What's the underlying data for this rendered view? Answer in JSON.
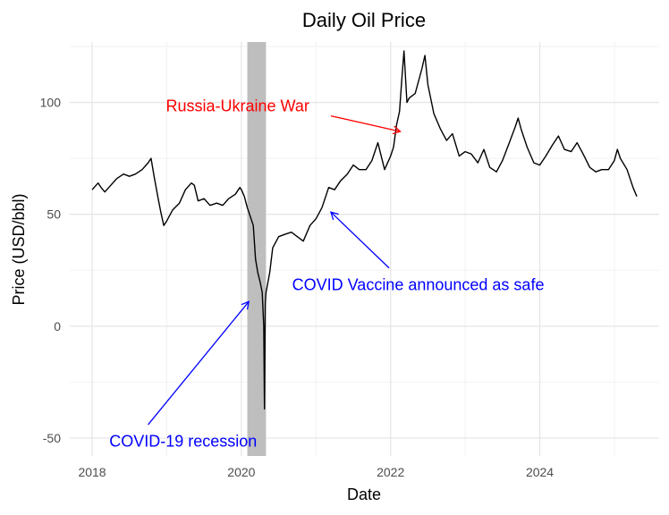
{
  "chart_data": {
    "type": "line",
    "title": "Daily Oil Price",
    "xlabel": "Date",
    "ylabel": "Price (USD/bbl)",
    "x_ticks": [
      {
        "value": 2018,
        "label": "2018"
      },
      {
        "value": 2020,
        "label": "2020"
      },
      {
        "value": 2022,
        "label": "2022"
      },
      {
        "value": 2024,
        "label": "2024"
      }
    ],
    "y_ticks": [
      {
        "value": -50,
        "label": "-50"
      },
      {
        "value": 0,
        "label": "0"
      },
      {
        "value": 50,
        "label": "50"
      },
      {
        "value": 100,
        "label": "100"
      }
    ],
    "xlim": [
      2017.7,
      2025.6
    ],
    "ylim": [
      -58,
      127
    ],
    "grid": true,
    "shaded_region": {
      "x_start": 2020.08,
      "x_end": 2020.33,
      "color": "#bebebe"
    },
    "series": [
      {
        "color": "#000000",
        "points": [
          [
            2018.0,
            61
          ],
          [
            2018.08,
            64
          ],
          [
            2018.12,
            62
          ],
          [
            2018.17,
            60
          ],
          [
            2018.25,
            63
          ],
          [
            2018.33,
            66
          ],
          [
            2018.42,
            68
          ],
          [
            2018.5,
            67
          ],
          [
            2018.58,
            68
          ],
          [
            2018.67,
            70
          ],
          [
            2018.75,
            73
          ],
          [
            2018.79,
            75
          ],
          [
            2018.83,
            67
          ],
          [
            2018.88,
            58
          ],
          [
            2018.92,
            51
          ],
          [
            2018.96,
            45
          ],
          [
            2019.0,
            47
          ],
          [
            2019.08,
            52
          ],
          [
            2019.17,
            55
          ],
          [
            2019.25,
            61
          ],
          [
            2019.33,
            64
          ],
          [
            2019.37,
            63
          ],
          [
            2019.42,
            56
          ],
          [
            2019.5,
            57
          ],
          [
            2019.58,
            54
          ],
          [
            2019.67,
            55
          ],
          [
            2019.75,
            54
          ],
          [
            2019.83,
            57
          ],
          [
            2019.92,
            59
          ],
          [
            2019.98,
            62
          ],
          [
            2020.0,
            61
          ],
          [
            2020.04,
            58
          ],
          [
            2020.08,
            53
          ],
          [
            2020.12,
            49
          ],
          [
            2020.16,
            45
          ],
          [
            2020.19,
            30
          ],
          [
            2020.22,
            24
          ],
          [
            2020.25,
            20
          ],
          [
            2020.28,
            15
          ],
          [
            2020.3,
            0
          ],
          [
            2020.31,
            -37
          ],
          [
            2020.32,
            10
          ],
          [
            2020.33,
            15
          ],
          [
            2020.38,
            24
          ],
          [
            2020.42,
            35
          ],
          [
            2020.5,
            40
          ],
          [
            2020.58,
            41
          ],
          [
            2020.67,
            42
          ],
          [
            2020.75,
            40
          ],
          [
            2020.83,
            38
          ],
          [
            2020.92,
            45
          ],
          [
            2021.0,
            48
          ],
          [
            2021.08,
            53
          ],
          [
            2021.17,
            62
          ],
          [
            2021.25,
            61
          ],
          [
            2021.33,
            65
          ],
          [
            2021.42,
            68
          ],
          [
            2021.5,
            72
          ],
          [
            2021.58,
            70
          ],
          [
            2021.67,
            70
          ],
          [
            2021.75,
            74
          ],
          [
            2021.83,
            82
          ],
          [
            2021.92,
            70
          ],
          [
            2022.0,
            76
          ],
          [
            2022.04,
            80
          ],
          [
            2022.08,
            90
          ],
          [
            2022.12,
            96
          ],
          [
            2022.15,
            110
          ],
          [
            2022.18,
            123
          ],
          [
            2022.22,
            100
          ],
          [
            2022.25,
            102
          ],
          [
            2022.33,
            104
          ],
          [
            2022.42,
            115
          ],
          [
            2022.46,
            121
          ],
          [
            2022.5,
            108
          ],
          [
            2022.58,
            95
          ],
          [
            2022.67,
            88
          ],
          [
            2022.75,
            83
          ],
          [
            2022.83,
            86
          ],
          [
            2022.92,
            76
          ],
          [
            2023.0,
            78
          ],
          [
            2023.08,
            77
          ],
          [
            2023.17,
            73
          ],
          [
            2023.25,
            79
          ],
          [
            2023.33,
            71
          ],
          [
            2023.42,
            69
          ],
          [
            2023.5,
            74
          ],
          [
            2023.58,
            81
          ],
          [
            2023.67,
            89
          ],
          [
            2023.71,
            93
          ],
          [
            2023.75,
            88
          ],
          [
            2023.83,
            80
          ],
          [
            2023.92,
            73
          ],
          [
            2024.0,
            72
          ],
          [
            2024.08,
            76
          ],
          [
            2024.17,
            81
          ],
          [
            2024.25,
            85
          ],
          [
            2024.33,
            79
          ],
          [
            2024.42,
            78
          ],
          [
            2024.5,
            82
          ],
          [
            2024.58,
            77
          ],
          [
            2024.67,
            71
          ],
          [
            2024.75,
            69
          ],
          [
            2024.83,
            70
          ],
          [
            2024.92,
            70
          ],
          [
            2025.0,
            74
          ],
          [
            2025.04,
            79
          ],
          [
            2025.08,
            75
          ],
          [
            2025.17,
            70
          ],
          [
            2025.25,
            62
          ],
          [
            2025.3,
            58
          ]
        ]
      }
    ],
    "annotations": [
      {
        "text": "Russia-Ukraine War",
        "color": "#ff0000",
        "text_x": 2019.95,
        "text_y": 98,
        "arrow_from": [
          2021.2,
          94
        ],
        "arrow_to": [
          2022.13,
          87
        ]
      },
      {
        "text": "COVID Vaccine announced as safe",
        "color": "#0000ff",
        "text_x": 2022.37,
        "text_y": 18,
        "arrow_from": [
          2021.98,
          26
        ],
        "arrow_to": [
          2021.2,
          51
        ]
      },
      {
        "text": "COVID-19 recession",
        "color": "#0000ff",
        "text_x": 2019.22,
        "text_y": -52,
        "arrow_from": [
          2018.75,
          -44
        ],
        "arrow_to": [
          2020.1,
          11
        ]
      }
    ]
  }
}
